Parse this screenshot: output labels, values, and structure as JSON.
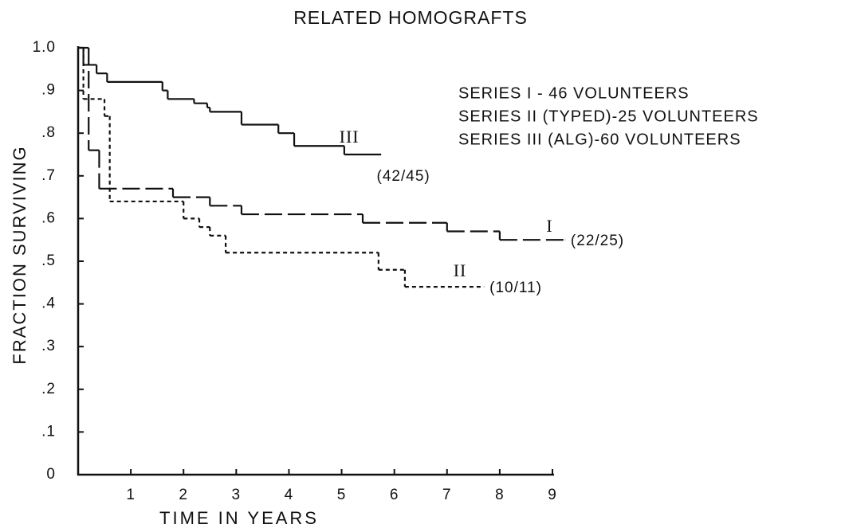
{
  "chart_data": {
    "type": "step",
    "title": "RELATED HOMOGRAFTS",
    "x_label": "TIME IN YEARS",
    "y_label": "FRACTION SURVIVING",
    "xlim": [
      0,
      9
    ],
    "ylim": [
      0,
      1.0
    ],
    "xticks": [
      1,
      2,
      3,
      4,
      5,
      6,
      7,
      8,
      9
    ],
    "yticks": [
      0,
      {
        "value": 0.1,
        "label": ".1"
      },
      {
        "value": 0.2,
        "label": ".2"
      },
      {
        "value": 0.3,
        "label": ".3"
      },
      {
        "value": 0.4,
        "label": ".4"
      },
      {
        "value": 0.5,
        "label": ".5"
      },
      {
        "value": 0.6,
        "label": ".6"
      },
      {
        "value": 0.7,
        "label": ".7"
      },
      {
        "value": 0.8,
        "label": ".8"
      },
      {
        "value": 0.9,
        "label": ".9"
      },
      {
        "value": 1.0,
        "label": "1.0"
      }
    ],
    "series": [
      {
        "name": "SERIES I - 46 VOLUNTEERS",
        "label": "I",
        "end_label": "(22/25)",
        "color": "#111111",
        "line_style": "long-dash",
        "x": [
          0,
          0.2,
          0.4,
          1.8,
          2.5,
          3.1,
          5.4,
          7.0,
          8.0,
          9.25
        ],
        "values": [
          1.0,
          0.76,
          0.67,
          0.65,
          0.63,
          0.61,
          0.59,
          0.57,
          0.55,
          0.55
        ]
      },
      {
        "name": "SERIES II (TYPED)-25 VOLUNTEERS",
        "label": "II",
        "end_label": "(10/11)",
        "color": "#111111",
        "line_style": "short-dash",
        "x": [
          0,
          0.1,
          0.5,
          0.6,
          2.0,
          2.3,
          2.5,
          2.8,
          5.7,
          6.2,
          7.7
        ],
        "values": [
          1.0,
          0.88,
          0.84,
          0.64,
          0.6,
          0.58,
          0.56,
          0.52,
          0.48,
          0.44,
          0.44
        ]
      },
      {
        "name": "SERIES III (ALG)-60 VOLUNTEERS",
        "label": "III",
        "end_label": "(42/45)",
        "color": "#111111",
        "line_style": "solid",
        "x": [
          0,
          0.1,
          0.35,
          0.55,
          1.6,
          1.7,
          2.2,
          2.45,
          2.5,
          3.1,
          3.8,
          4.1,
          5.05,
          5.75
        ],
        "values": [
          1.0,
          0.96,
          0.94,
          0.92,
          0.9,
          0.88,
          0.87,
          0.86,
          0.85,
          0.82,
          0.8,
          0.77,
          0.75,
          0.75
        ]
      }
    ]
  }
}
